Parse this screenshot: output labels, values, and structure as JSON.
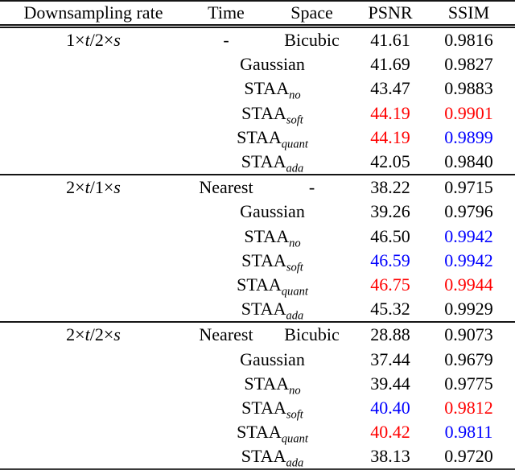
{
  "page": {
    "background": "#ffffff",
    "text_color": "#000000"
  },
  "highlight_colors": {
    "black": "#000000",
    "red": "#ff0000",
    "blue": "#0000ff"
  },
  "table": {
    "columns": [
      "Downsampling rate",
      "Time",
      "Space",
      "PSNR",
      "SSIM"
    ],
    "groups": [
      {
        "rate": "1×t/2×s",
        "rows": [
          {
            "time": "-",
            "space": "Bicubic",
            "psnr": "41.61",
            "ssim": "0.9816",
            "psnr_color": "black",
            "ssim_color": "black"
          },
          {
            "method": "Gaussian",
            "method_sub": "",
            "psnr": "41.69",
            "ssim": "0.9827",
            "psnr_color": "black",
            "ssim_color": "black"
          },
          {
            "method": "STAA",
            "method_sub": "no",
            "psnr": "43.47",
            "ssim": "0.9883",
            "psnr_color": "black",
            "ssim_color": "black"
          },
          {
            "method": "STAA",
            "method_sub": "soft",
            "psnr": "44.19",
            "ssim": "0.9901",
            "psnr_color": "red",
            "ssim_color": "red"
          },
          {
            "method": "STAA",
            "method_sub": "quant",
            "psnr": "44.19",
            "ssim": "0.9899",
            "psnr_color": "red",
            "ssim_color": "blue"
          },
          {
            "method": "STAA",
            "method_sub": "ada",
            "psnr": "42.05",
            "ssim": "0.9840",
            "psnr_color": "black",
            "ssim_color": "black"
          }
        ]
      },
      {
        "rate": "2×t/1×s",
        "rows": [
          {
            "time": "Nearest",
            "space": "-",
            "psnr": "38.22",
            "ssim": "0.9715",
            "psnr_color": "black",
            "ssim_color": "black"
          },
          {
            "method": "Gaussian",
            "method_sub": "",
            "psnr": "39.26",
            "ssim": "0.9796",
            "psnr_color": "black",
            "ssim_color": "black"
          },
          {
            "method": "STAA",
            "method_sub": "no",
            "psnr": "46.50",
            "ssim": "0.9942",
            "psnr_color": "black",
            "ssim_color": "blue"
          },
          {
            "method": "STAA",
            "method_sub": "soft",
            "psnr": "46.59",
            "ssim": "0.9942",
            "psnr_color": "blue",
            "ssim_color": "blue"
          },
          {
            "method": "STAA",
            "method_sub": "quant",
            "psnr": "46.75",
            "ssim": "0.9944",
            "psnr_color": "red",
            "ssim_color": "red"
          },
          {
            "method": "STAA",
            "method_sub": "ada",
            "psnr": "45.32",
            "ssim": "0.9929",
            "psnr_color": "black",
            "ssim_color": "black"
          }
        ]
      },
      {
        "rate": "2×t/2×s",
        "rows": [
          {
            "time": "Nearest",
            "space": "Bicubic",
            "psnr": "28.88",
            "ssim": "0.9073",
            "psnr_color": "black",
            "ssim_color": "black"
          },
          {
            "method": "Gaussian",
            "method_sub": "",
            "psnr": "37.44",
            "ssim": "0.9679",
            "psnr_color": "black",
            "ssim_color": "black"
          },
          {
            "method": "STAA",
            "method_sub": "no",
            "psnr": "39.44",
            "ssim": "0.9775",
            "psnr_color": "black",
            "ssim_color": "black"
          },
          {
            "method": "STAA",
            "method_sub": "soft",
            "psnr": "40.40",
            "ssim": "0.9812",
            "psnr_color": "blue",
            "ssim_color": "red"
          },
          {
            "method": "STAA",
            "method_sub": "quant",
            "psnr": "40.42",
            "ssim": "0.9811",
            "psnr_color": "red",
            "ssim_color": "blue"
          },
          {
            "method": "STAA",
            "method_sub": "ada",
            "psnr": "38.13",
            "ssim": "0.9720",
            "psnr_color": "black",
            "ssim_color": "black"
          }
        ]
      }
    ]
  }
}
